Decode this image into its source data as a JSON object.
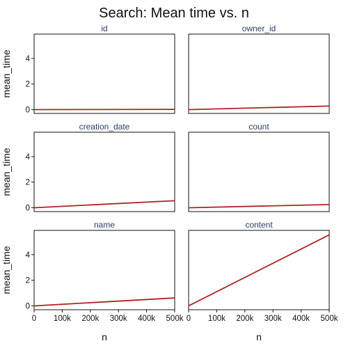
{
  "chart_data": {
    "type": "line",
    "title": "Search: Mean time vs. n",
    "xlabel": "n",
    "ylabel": "mean_time",
    "xlim": [
      0,
      500000
    ],
    "ylim": [
      -0.3,
      5.9
    ],
    "x_ticks": [
      0,
      100000,
      200000,
      300000,
      400000,
      500000
    ],
    "x_tick_labels": [
      "0",
      "100k",
      "200k",
      "300k",
      "400k",
      "500k"
    ],
    "y_ticks": [
      0,
      2,
      4
    ],
    "y_tick_labels": [
      "0",
      "2",
      "4"
    ],
    "grid": false,
    "line_color": "#b22222",
    "panels": [
      {
        "name": "id",
        "x": [
          0,
          500000
        ],
        "y": [
          0.0,
          0.02
        ]
      },
      {
        "name": "owner_id",
        "x": [
          0,
          500000
        ],
        "y": [
          0.0,
          0.28
        ]
      },
      {
        "name": "creation_date",
        "x": [
          0,
          500000
        ],
        "y": [
          0.0,
          0.55
        ]
      },
      {
        "name": "count",
        "x": [
          0,
          500000
        ],
        "y": [
          0.0,
          0.25
        ]
      },
      {
        "name": "name",
        "x": [
          0,
          500000
        ],
        "y": [
          0.0,
          0.62
        ]
      },
      {
        "name": "content",
        "x": [
          0,
          500000
        ],
        "y": [
          0.0,
          5.55
        ]
      }
    ]
  }
}
